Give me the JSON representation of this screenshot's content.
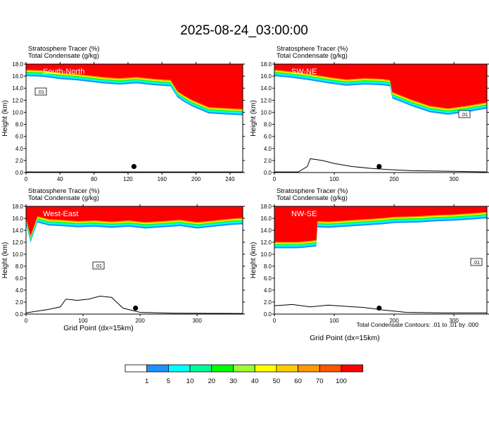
{
  "page_title": "2025-08-24_03:00:00",
  "footnote": "Total Condensate Contours: .01 to .01 by .000",
  "xlabel": "Grid Point (dx=15km)",
  "ylabel": "Height (km)",
  "header_line1": "Stratosphere Tracer    (%)",
  "header_line2": "Total Condensate    (g/kg)",
  "colors": {
    "levels": [
      "#ffffff",
      "#1e90ff",
      "#00ffff",
      "#00fa9a",
      "#00ff00",
      "#9aff33",
      "#ffff00",
      "#ffcc00",
      "#ff9900",
      "#ff5500",
      "#ff0000"
    ],
    "outline": "#000000"
  },
  "colorbar": {
    "labels": [
      "1",
      "5",
      "10",
      "20",
      "30",
      "40",
      "50",
      "60",
      "70",
      "100"
    ]
  },
  "chart_data": [
    {
      "type": "area",
      "name": "South-North",
      "xlim": [
        0,
        255
      ],
      "ylim": [
        0,
        18
      ],
      "xticks": [
        "0",
        "40",
        "80",
        "120",
        "160",
        "200",
        "240"
      ],
      "yticks": [
        "0.0",
        "2.0",
        "4.0",
        "6.0",
        "8.0",
        "10.0",
        "12.0",
        "14.0",
        "16.0",
        "18.0"
      ],
      "tropopause": {
        "x": [
          0,
          20,
          30,
          40,
          60,
          90,
          110,
          130,
          150,
          170,
          178,
          185,
          195,
          215,
          240,
          255
        ],
        "y": [
          16,
          15.9,
          15.7,
          15.5,
          15.3,
          14.8,
          14.6,
          14.8,
          14.5,
          14.3,
          12.5,
          11.8,
          11,
          9.8,
          9.6,
          9.5
        ]
      },
      "terrain": {
        "x": [
          0,
          255
        ],
        "y": [
          0.1,
          0.1
        ]
      },
      "marker": {
        "x": 127,
        "y": 1.0
      },
      "contour_label": ".01"
    },
    {
      "type": "area",
      "name": "SW-NE",
      "xlim": [
        0,
        355
      ],
      "ylim": [
        0,
        18
      ],
      "xticks": [
        "0",
        "100",
        "200",
        "300"
      ],
      "yticks": [
        "0.0",
        "2.0",
        "4.0",
        "6.0",
        "8.0",
        "10.0",
        "12.0",
        "14.0",
        "16.0",
        "18.0"
      ],
      "tropopause": {
        "x": [
          0,
          30,
          60,
          90,
          120,
          150,
          180,
          193,
          197,
          230,
          260,
          290,
          320,
          355
        ],
        "y": [
          16,
          15.7,
          15.3,
          14.8,
          14.4,
          14.6,
          14.5,
          14.3,
          12.3,
          11,
          10,
          9.6,
          10,
          10.6
        ]
      },
      "terrain": {
        "x": [
          0,
          40,
          55,
          60,
          80,
          100,
          130,
          160,
          190,
          230,
          300,
          355
        ],
        "y": [
          0.1,
          0.1,
          1.0,
          2.3,
          2.0,
          1.5,
          1.0,
          0.7,
          0.5,
          0.3,
          0.2,
          0.1
        ]
      },
      "marker": {
        "x": 175,
        "y": 1.0
      },
      "contour_label": ".01"
    },
    {
      "type": "area",
      "name": "West-East",
      "xlim": [
        0,
        380
      ],
      "ylim": [
        0,
        18
      ],
      "xticks": [
        "0",
        "100",
        "200",
        "300"
      ],
      "yticks": [
        "0.0",
        "2.0",
        "4.0",
        "6.0",
        "8.0",
        "10.0",
        "12.0",
        "14.0",
        "16.0",
        "18.0"
      ],
      "tropopause": {
        "x": [
          0,
          8,
          20,
          40,
          60,
          90,
          120,
          150,
          180,
          210,
          240,
          270,
          300,
          330,
          360,
          380
        ],
        "y": [
          15,
          12,
          15.3,
          14.8,
          14.7,
          14.5,
          14.6,
          14.4,
          14.6,
          14.3,
          14.5,
          14.7,
          14.3,
          14.6,
          14.9,
          15
        ]
      },
      "terrain": {
        "x": [
          0,
          20,
          40,
          60,
          70,
          90,
          110,
          130,
          150,
          170,
          200,
          260,
          380
        ],
        "y": [
          0.2,
          0.5,
          0.8,
          1.2,
          2.5,
          2.3,
          2.5,
          3.0,
          2.8,
          1.0,
          0.3,
          0.15,
          0.1
        ]
      },
      "marker": {
        "x": 192,
        "y": 1.0
      },
      "contour_label": ".01"
    },
    {
      "type": "area",
      "name": "NW-SE",
      "xlim": [
        0,
        355
      ],
      "ylim": [
        0,
        18
      ],
      "xticks": [
        "0",
        "100",
        "200",
        "300"
      ],
      "yticks": [
        "0.0",
        "2.0",
        "4.0",
        "6.0",
        "8.0",
        "10.0",
        "12.0",
        "14.0",
        "16.0",
        "18.0"
      ],
      "tropopause": {
        "x": [
          0,
          40,
          70,
          72,
          90,
          120,
          150,
          180,
          200,
          240,
          270,
          300,
          330,
          355
        ],
        "y": [
          11,
          11,
          11.3,
          14.5,
          14.4,
          14.6,
          14.8,
          15,
          15.2,
          15.3,
          15.5,
          15.6,
          15.8,
          16
        ]
      },
      "terrain": {
        "x": [
          0,
          30,
          60,
          90,
          120,
          150,
          180,
          220,
          280,
          355
        ],
        "y": [
          1.4,
          1.6,
          1.2,
          1.5,
          1.3,
          1.1,
          0.7,
          0.3,
          0.2,
          0.2
        ]
      },
      "marker": {
        "x": 175,
        "y": 1.0
      },
      "contour_label": ".01"
    }
  ]
}
